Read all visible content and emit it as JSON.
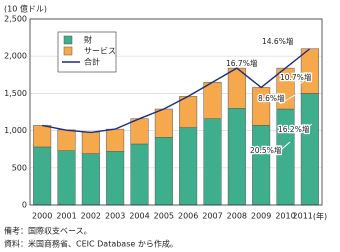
{
  "chart_data": {
    "type": "bar",
    "stacked": true,
    "y_label": "(10 億ドル)",
    "x_unit": "(年)",
    "categories": [
      "2000",
      "2001",
      "2002",
      "2003",
      "2004",
      "2005",
      "2006",
      "2007",
      "2008",
      "2009",
      "2010",
      "2011"
    ],
    "series": [
      {
        "name": "財",
        "color": "#3fae8c",
        "values": [
          780,
          730,
          690,
          720,
          820,
          910,
          1040,
          1160,
          1300,
          1070,
          1290,
          1500
        ]
      },
      {
        "name": "サービス",
        "color": "#f6a84c",
        "values": [
          290,
          280,
          290,
          300,
          340,
          380,
          420,
          490,
          540,
          510,
          550,
          600
        ]
      },
      {
        "name": "合計",
        "type": "line",
        "color": "#1f2d7a",
        "values": [
          1070,
          1005,
          975,
          1020,
          1160,
          1290,
          1460,
          1650,
          1840,
          1580,
          1840,
          2100
        ]
      }
    ],
    "ylim": [
      0,
      2500
    ],
    "yticks": [
      0,
      500,
      {
        "value": 1000,
        "label": "1,000"
      },
      {
        "value": 1500,
        "label": "1,500"
      },
      {
        "value": 2000,
        "label": "2,000"
      },
      {
        "value": 2500,
        "label": "2,500"
      }
    ],
    "grid": true,
    "annotations": [
      "14.6%増",
      "16.7%増",
      "10.7%増",
      "8.6%増",
      "16.2%増",
      "20.5%増"
    ],
    "notes": [
      "備考：国際収支ベース。",
      "資料：米国商務省、CEIC Database から作成。"
    ]
  }
}
